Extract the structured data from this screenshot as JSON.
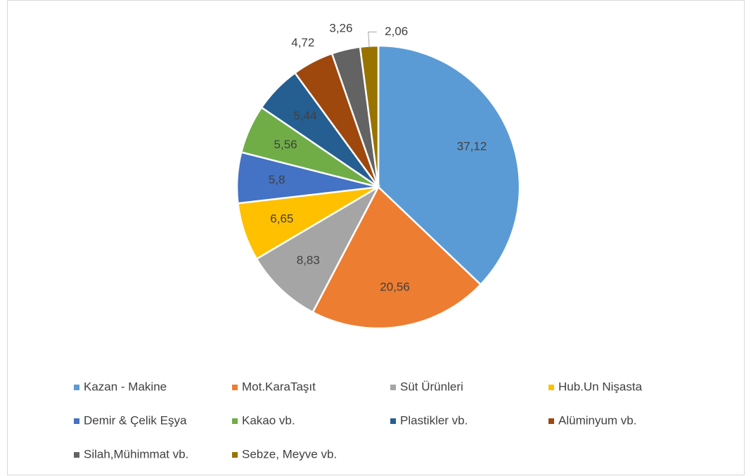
{
  "chart_data": {
    "type": "pie",
    "categories": [
      "Kazan - Makine",
      "Mot.KaraTaşıt",
      "Süt Ürünleri",
      "Hub.Un Nişasta",
      "Demir & Çelik Eşya",
      "Kakao vb.",
      "Plastikler  vb.",
      "Alüminyum vb.",
      "Silah,Mühimmat vb.",
      "Sebze, Meyve vb."
    ],
    "values": [
      37.12,
      20.56,
      8.83,
      6.65,
      5.8,
      5.56,
      5.44,
      4.72,
      3.26,
      2.06
    ],
    "value_labels": [
      "37,12",
      "20,56",
      "8,83",
      "6,65",
      "5,8",
      "5,56",
      "5,44",
      "4,72",
      "3,26",
      "2,06"
    ],
    "colors": [
      "#5b9bd5",
      "#ed7d31",
      "#a5a5a5",
      "#ffc000",
      "#4472c4",
      "#70ad47",
      "#255e91",
      "#9e480e",
      "#636363",
      "#997300"
    ],
    "legend": "bottom"
  }
}
